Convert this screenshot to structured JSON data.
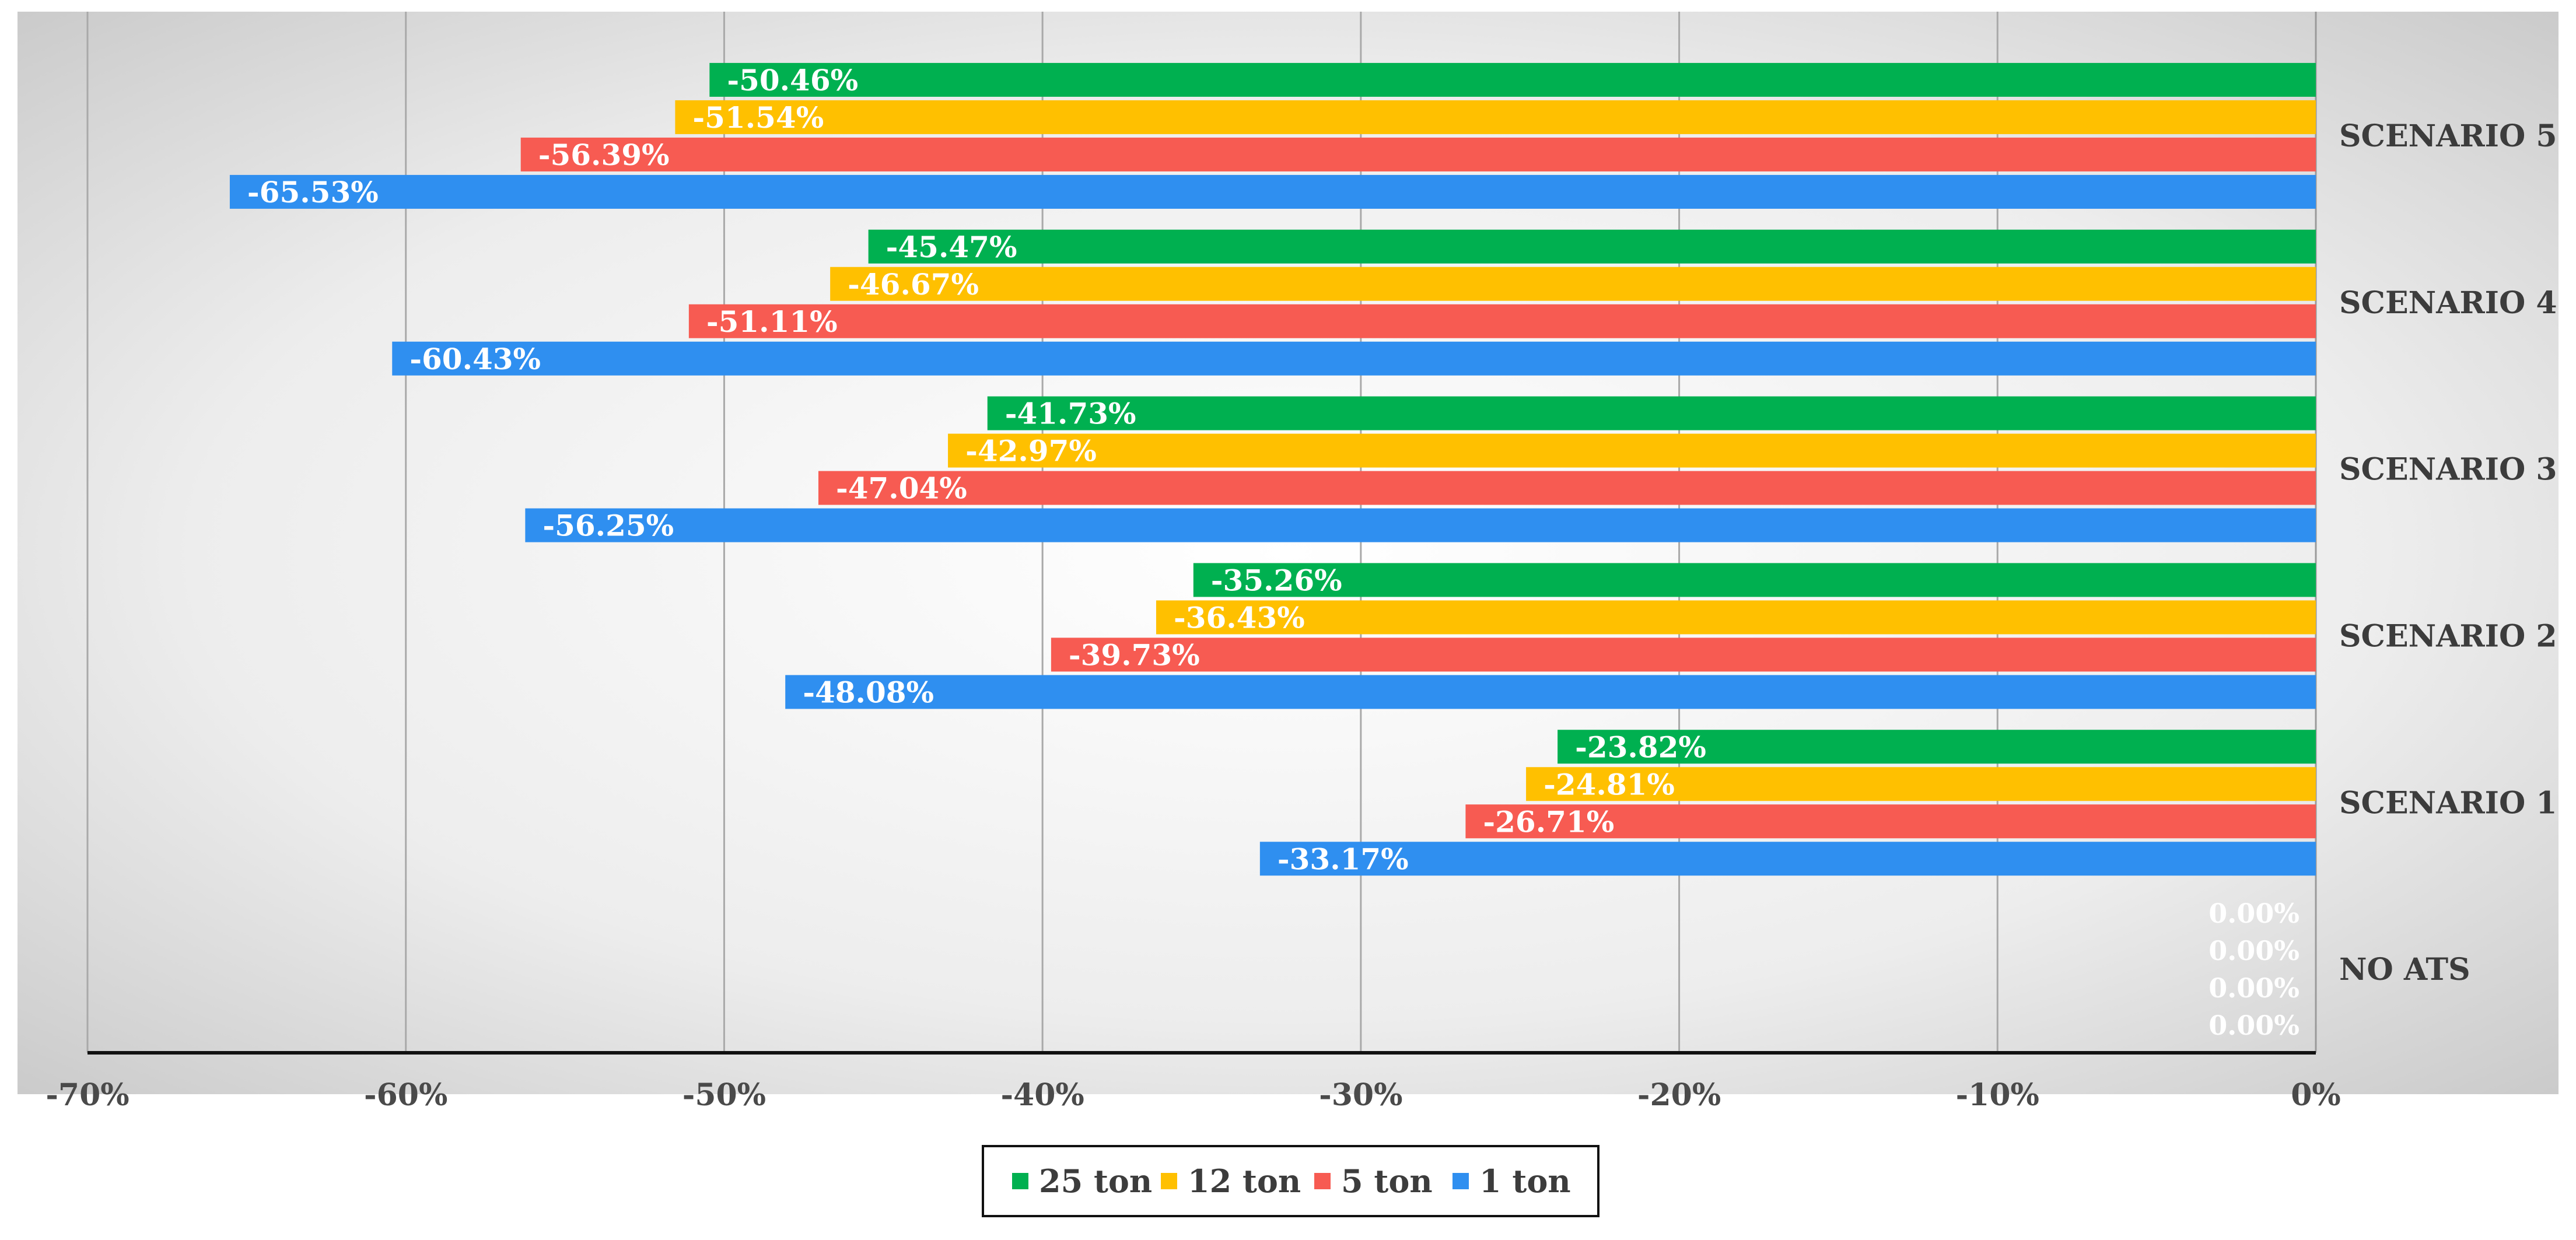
{
  "chart_data": {
    "type": "bar",
    "orientation": "horizontal",
    "categories": [
      "NO ATS",
      "SCENARIO 1",
      "SCENARIO 2",
      "SCENARIO 3",
      "SCENARIO 4",
      "SCENARIO 5"
    ],
    "series": [
      {
        "name": "25 ton",
        "color": "#00b050",
        "values": [
          0.0,
          -23.82,
          -35.26,
          -41.73,
          -45.47,
          -50.46
        ],
        "labels": [
          "0.00%",
          "-23.82%",
          "-35.26%",
          "-41.73%",
          "-45.47%",
          "-50.46%"
        ]
      },
      {
        "name": "12 ton",
        "color": "#ffc000",
        "values": [
          0.0,
          -24.81,
          -36.43,
          -42.97,
          -46.67,
          -51.54
        ],
        "labels": [
          "0.00%",
          "-24.81%",
          "-36.43%",
          "-42.97%",
          "-46.67%",
          "-51.54%"
        ]
      },
      {
        "name": "5 ton",
        "color": "#f75b52",
        "values": [
          0.0,
          -26.71,
          -39.73,
          -47.04,
          -51.11,
          -56.39
        ],
        "labels": [
          "0.00%",
          "-26.71%",
          "-39.73%",
          "-47.04%",
          "-51.11%",
          "-56.39%"
        ]
      },
      {
        "name": "1 ton",
        "color": "#2f8ff0",
        "values": [
          0.0,
          -33.17,
          -48.08,
          -56.25,
          -60.43,
          -65.53
        ],
        "labels": [
          "0.00%",
          "-33.17%",
          "-48.08%",
          "-56.25%",
          "-60.43%",
          "-65.53%"
        ]
      }
    ],
    "x_ticks": [
      -70,
      -60,
      -50,
      -40,
      -30,
      -20,
      -10,
      0
    ],
    "x_tick_labels": [
      "-70%",
      "-60%",
      "-50%",
      "-40%",
      "-30%",
      "-20%",
      "-10%",
      "0%"
    ],
    "xlim": [
      -70,
      0
    ],
    "xlabel": "",
    "ylabel": "",
    "grid": true,
    "legend_position": "bottom"
  }
}
